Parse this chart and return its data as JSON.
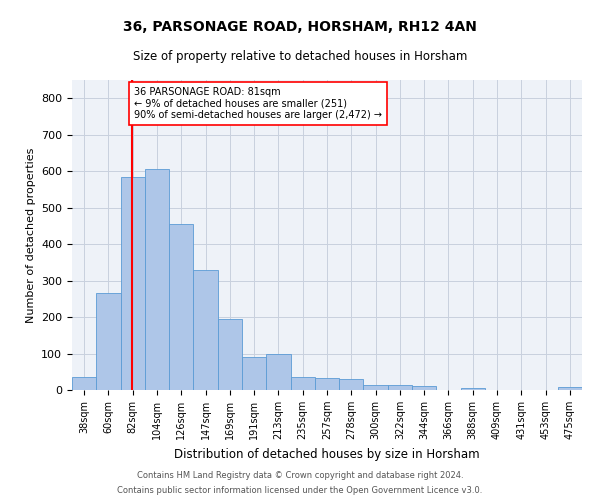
{
  "title1": "36, PARSONAGE ROAD, HORSHAM, RH12 4AN",
  "title2": "Size of property relative to detached houses in Horsham",
  "xlabel": "Distribution of detached houses by size in Horsham",
  "ylabel": "Number of detached properties",
  "bar_labels": [
    "38sqm",
    "60sqm",
    "82sqm",
    "104sqm",
    "126sqm",
    "147sqm",
    "169sqm",
    "191sqm",
    "213sqm",
    "235sqm",
    "257sqm",
    "278sqm",
    "300sqm",
    "322sqm",
    "344sqm",
    "366sqm",
    "388sqm",
    "409sqm",
    "431sqm",
    "453sqm",
    "475sqm"
  ],
  "bar_heights": [
    35,
    265,
    585,
    605,
    455,
    330,
    195,
    90,
    100,
    35,
    32,
    30,
    14,
    14,
    11,
    0,
    5,
    0,
    0,
    0,
    7
  ],
  "bar_color": "#aec6e8",
  "bar_edge_color": "#5b9bd5",
  "annotation_line1": "36 PARSONAGE ROAD: 81sqm",
  "annotation_line2": "← 9% of detached houses are smaller (251)",
  "annotation_line3": "90% of semi-detached houses are larger (2,472) →",
  "vline_x_index": 1.95,
  "ylim": [
    0,
    850
  ],
  "yticks": [
    0,
    100,
    200,
    300,
    400,
    500,
    600,
    700,
    800
  ],
  "footer1": "Contains HM Land Registry data © Crown copyright and database right 2024.",
  "footer2": "Contains public sector information licensed under the Open Government Licence v3.0.",
  "background_color": "#eef2f8",
  "grid_color": "#c8d0de"
}
